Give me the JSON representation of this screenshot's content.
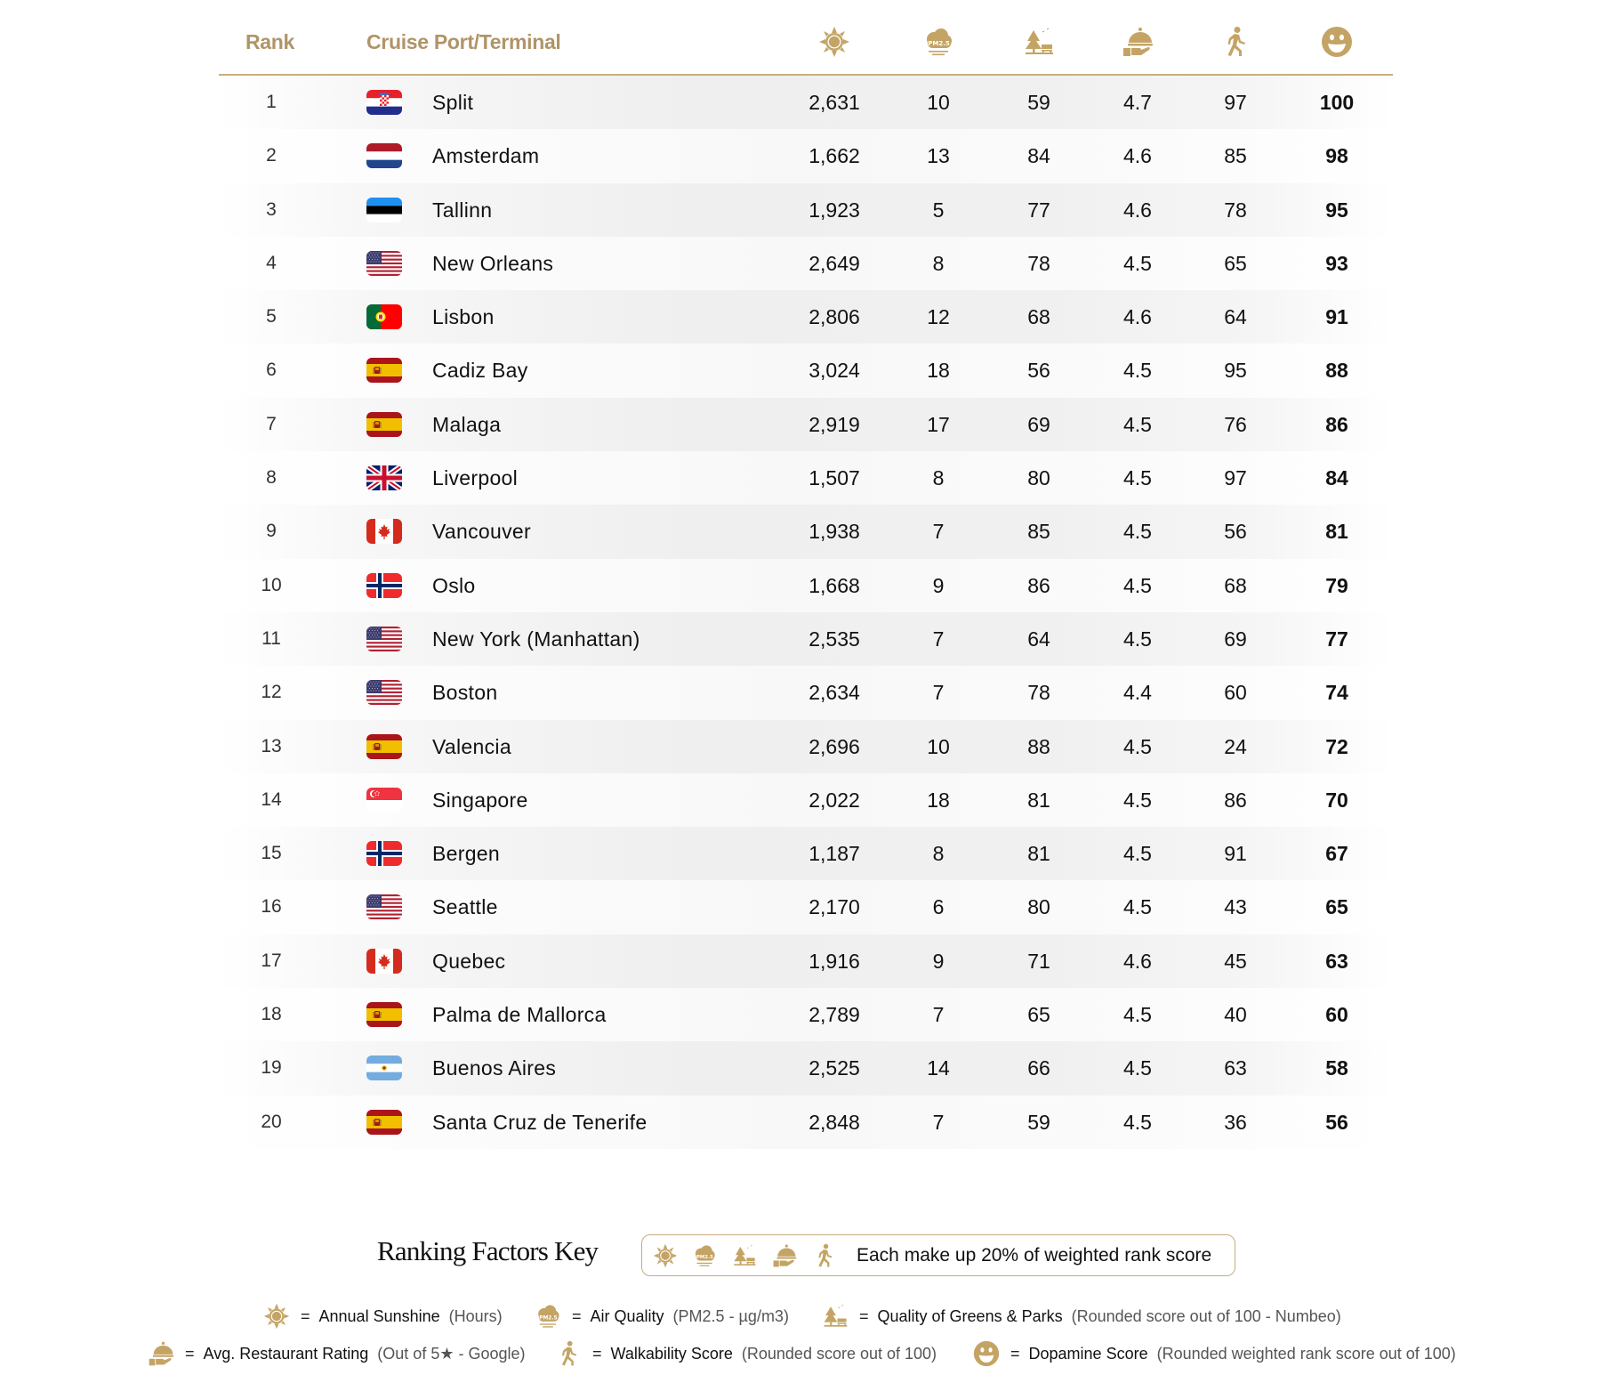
{
  "header": {
    "rank_label": "Rank",
    "port_label": "Cruise Port/Terminal",
    "columns": [
      {
        "key": "sunshine",
        "icon": "sun-icon"
      },
      {
        "key": "air_quality",
        "icon": "pm25-cloud-icon"
      },
      {
        "key": "parks",
        "icon": "park-bench-tree-icon"
      },
      {
        "key": "restaurant",
        "icon": "cloche-icon"
      },
      {
        "key": "walkability",
        "icon": "walking-person-icon"
      },
      {
        "key": "dopamine",
        "icon": "smiley-icon"
      }
    ]
  },
  "colors": {
    "accent_gold": "#c4a465",
    "header_text": "#b09468",
    "rule": "#c9ad7f"
  },
  "rows": [
    {
      "rank": "1",
      "port": "Split",
      "flag": "croatia",
      "sunshine": "2,631",
      "air": "10",
      "parks": "59",
      "restaurant": "4.7",
      "walk": "97",
      "score": "100"
    },
    {
      "rank": "2",
      "port": "Amsterdam",
      "flag": "netherlands",
      "sunshine": "1,662",
      "air": "13",
      "parks": "84",
      "restaurant": "4.6",
      "walk": "85",
      "score": "98"
    },
    {
      "rank": "3",
      "port": "Tallinn",
      "flag": "estonia",
      "sunshine": "1,923",
      "air": "5",
      "parks": "77",
      "restaurant": "4.6",
      "walk": "78",
      "score": "95"
    },
    {
      "rank": "4",
      "port": "New Orleans",
      "flag": "usa",
      "sunshine": "2,649",
      "air": "8",
      "parks": "78",
      "restaurant": "4.5",
      "walk": "65",
      "score": "93"
    },
    {
      "rank": "5",
      "port": "Lisbon",
      "flag": "portugal",
      "sunshine": "2,806",
      "air": "12",
      "parks": "68",
      "restaurant": "4.6",
      "walk": "64",
      "score": "91"
    },
    {
      "rank": "6",
      "port": "Cadiz Bay",
      "flag": "spain",
      "sunshine": "3,024",
      "air": "18",
      "parks": "56",
      "restaurant": "4.5",
      "walk": "95",
      "score": "88"
    },
    {
      "rank": "7",
      "port": "Malaga",
      "flag": "spain",
      "sunshine": "2,919",
      "air": "17",
      "parks": "69",
      "restaurant": "4.5",
      "walk": "76",
      "score": "86"
    },
    {
      "rank": "8",
      "port": "Liverpool",
      "flag": "uk",
      "sunshine": "1,507",
      "air": "8",
      "parks": "80",
      "restaurant": "4.5",
      "walk": "97",
      "score": "84"
    },
    {
      "rank": "9",
      "port": "Vancouver",
      "flag": "canada",
      "sunshine": "1,938",
      "air": "7",
      "parks": "85",
      "restaurant": "4.5",
      "walk": "56",
      "score": "81"
    },
    {
      "rank": "10",
      "port": "Oslo",
      "flag": "norway",
      "sunshine": "1,668",
      "air": "9",
      "parks": "86",
      "restaurant": "4.5",
      "walk": "68",
      "score": "79"
    },
    {
      "rank": "11",
      "port": "New York (Manhattan)",
      "flag": "usa",
      "sunshine": "2,535",
      "air": "7",
      "parks": "64",
      "restaurant": "4.5",
      "walk": "69",
      "score": "77"
    },
    {
      "rank": "12",
      "port": "Boston",
      "flag": "usa",
      "sunshine": "2,634",
      "air": "7",
      "parks": "78",
      "restaurant": "4.4",
      "walk": "60",
      "score": "74"
    },
    {
      "rank": "13",
      "port": "Valencia",
      "flag": "spain",
      "sunshine": "2,696",
      "air": "10",
      "parks": "88",
      "restaurant": "4.5",
      "walk": "24",
      "score": "72"
    },
    {
      "rank": "14",
      "port": "Singapore",
      "flag": "singapore",
      "sunshine": "2,022",
      "air": "18",
      "parks": "81",
      "restaurant": "4.5",
      "walk": "86",
      "score": "70"
    },
    {
      "rank": "15",
      "port": "Bergen",
      "flag": "norway",
      "sunshine": "1,187",
      "air": "8",
      "parks": "81",
      "restaurant": "4.5",
      "walk": "91",
      "score": "67"
    },
    {
      "rank": "16",
      "port": "Seattle",
      "flag": "usa",
      "sunshine": "2,170",
      "air": "6",
      "parks": "80",
      "restaurant": "4.5",
      "walk": "43",
      "score": "65"
    },
    {
      "rank": "17",
      "port": "Quebec",
      "flag": "canada",
      "sunshine": "1,916",
      "air": "9",
      "parks": "71",
      "restaurant": "4.6",
      "walk": "45",
      "score": "63"
    },
    {
      "rank": "18",
      "port": "Palma de Mallorca",
      "flag": "spain",
      "sunshine": "2,789",
      "air": "7",
      "parks": "65",
      "restaurant": "4.5",
      "walk": "40",
      "score": "60"
    },
    {
      "rank": "19",
      "port": "Buenos Aires",
      "flag": "argentina",
      "sunshine": "2,525",
      "air": "14",
      "parks": "66",
      "restaurant": "4.5",
      "walk": "63",
      "score": "58"
    },
    {
      "rank": "20",
      "port": "Santa Cruz de Tenerife",
      "flag": "spain",
      "sunshine": "2,848",
      "air": "7",
      "parks": "59",
      "restaurant": "4.5",
      "walk": "36",
      "score": "56"
    }
  ],
  "key": {
    "title": "Ranking Factors Key",
    "box_text": "Each make up 20% of weighted rank score",
    "legend": [
      {
        "icon": "sun-icon",
        "eq": "=",
        "name": "Annual Sunshine",
        "note": "(Hours)"
      },
      {
        "icon": "pm25-cloud-icon",
        "eq": "=",
        "name": "Air Quality",
        "note": "(PM2.5 - µg/m3)"
      },
      {
        "icon": "park-bench-tree-icon",
        "eq": "=",
        "name": "Quality of Greens & Parks",
        "note": "(Rounded score out of 100 - Numbeo)"
      },
      {
        "icon": "cloche-icon",
        "eq": "=",
        "name": "Avg. Restaurant Rating",
        "note": "(Out of 5★ - Google)"
      },
      {
        "icon": "walking-person-icon",
        "eq": "=",
        "name": "Walkability Score",
        "note": "(Rounded score out  of 100)"
      },
      {
        "icon": "smiley-icon",
        "eq": "=",
        "name": "Dopamine Score",
        "note": "(Rounded weighted rank score out  of 100)"
      }
    ]
  },
  "chart_data": {
    "type": "table",
    "title": "Cruise Port Dopamine Ranking",
    "columns": [
      "Rank",
      "Cruise Port/Terminal",
      "Annual Sunshine (Hours)",
      "Air Quality (PM2.5 µg/m3)",
      "Quality of Greens & Parks (/100)",
      "Avg. Restaurant Rating (/5)",
      "Walkability Score (/100)",
      "Dopamine Score (/100)"
    ],
    "rows": [
      [
        1,
        "Split",
        2631,
        10,
        59,
        4.7,
        97,
        100
      ],
      [
        2,
        "Amsterdam",
        1662,
        13,
        84,
        4.6,
        85,
        98
      ],
      [
        3,
        "Tallinn",
        1923,
        5,
        77,
        4.6,
        78,
        95
      ],
      [
        4,
        "New Orleans",
        2649,
        8,
        78,
        4.5,
        65,
        93
      ],
      [
        5,
        "Lisbon",
        2806,
        12,
        68,
        4.6,
        64,
        91
      ],
      [
        6,
        "Cadiz Bay",
        3024,
        18,
        56,
        4.5,
        95,
        88
      ],
      [
        7,
        "Malaga",
        2919,
        17,
        69,
        4.5,
        76,
        86
      ],
      [
        8,
        "Liverpool",
        1507,
        8,
        80,
        4.5,
        97,
        84
      ],
      [
        9,
        "Vancouver",
        1938,
        7,
        85,
        4.5,
        56,
        81
      ],
      [
        10,
        "Oslo",
        1668,
        9,
        86,
        4.5,
        68,
        79
      ],
      [
        11,
        "New York (Manhattan)",
        2535,
        7,
        64,
        4.5,
        69,
        77
      ],
      [
        12,
        "Boston",
        2634,
        7,
        78,
        4.4,
        60,
        74
      ],
      [
        13,
        "Valencia",
        2696,
        10,
        88,
        4.5,
        24,
        72
      ],
      [
        14,
        "Singapore",
        2022,
        18,
        81,
        4.5,
        86,
        70
      ],
      [
        15,
        "Bergen",
        1187,
        8,
        81,
        4.5,
        91,
        67
      ],
      [
        16,
        "Seattle",
        2170,
        6,
        80,
        4.5,
        43,
        65
      ],
      [
        17,
        "Quebec",
        1916,
        9,
        71,
        4.6,
        45,
        63
      ],
      [
        18,
        "Palma de Mallorca",
        2789,
        7,
        65,
        4.5,
        40,
        60
      ],
      [
        19,
        "Buenos Aires",
        2525,
        14,
        66,
        4.5,
        63,
        58
      ],
      [
        20,
        "Santa Cruz de Tenerife",
        2848,
        7,
        59,
        4.5,
        36,
        56
      ]
    ],
    "legend": "Each factor makes up 20% of weighted rank score"
  }
}
